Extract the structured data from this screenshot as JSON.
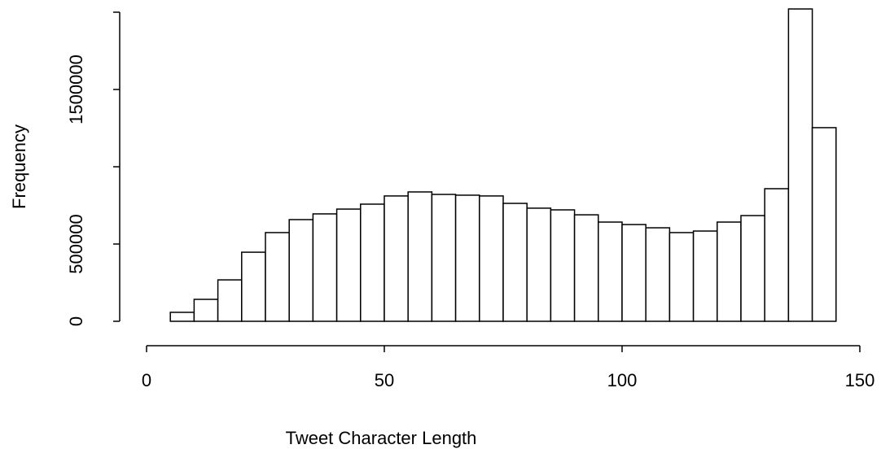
{
  "chart_data": {
    "type": "histogram",
    "x_label": "Tweet Character Length",
    "y_label": "Frequency",
    "bins": [
      0,
      5,
      10,
      15,
      20,
      25,
      30,
      35,
      40,
      45,
      50,
      55,
      60,
      65,
      70,
      75,
      80,
      85,
      90,
      95,
      100,
      105,
      110,
      115,
      120,
      125,
      130,
      135,
      140,
      145
    ],
    "values": [
      0,
      58000,
      142000,
      268000,
      447000,
      574000,
      658000,
      695000,
      726000,
      758000,
      811000,
      837000,
      821000,
      816000,
      811000,
      763000,
      732000,
      721000,
      689000,
      642000,
      626000,
      605000,
      574000,
      584000,
      642000,
      684000,
      858000,
      2021000,
      1253000
    ],
    "color": "#ffffff",
    "xlim": [
      0,
      150
    ],
    "xticks": [
      0,
      50,
      100,
      150
    ],
    "ylim": [
      0,
      2000000
    ],
    "yticks": [
      0,
      500000,
      {
        "value": 1000000,
        "label": null
      },
      1500000,
      {
        "value": 2000000,
        "label": null
      }
    ]
  }
}
